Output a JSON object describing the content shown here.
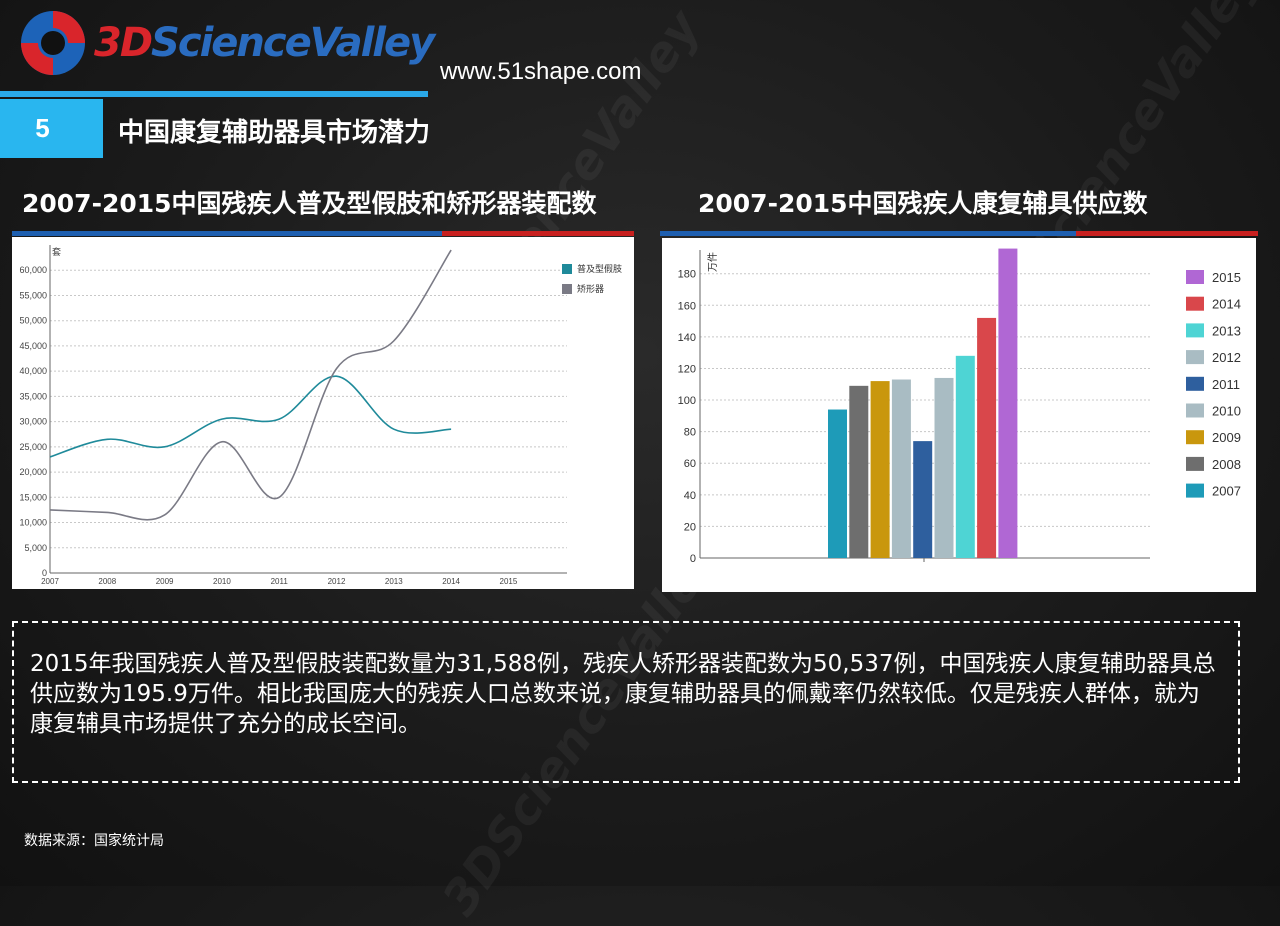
{
  "brand": {
    "logo_text_3d": "3D",
    "logo_text_rest": "ScienceValley",
    "website": "www.51shape.com"
  },
  "section": {
    "number": "5",
    "title": "中国康复辅助器具市场潜力"
  },
  "left_chart": {
    "title": "2007-2015中国残疾人普及型假肢和矫形器装配数"
  },
  "right_chart": {
    "title": "2007-2015中国残疾人康复辅具供应数"
  },
  "summary": "2015年我国残疾人普及型假肢装配数量为31,588例，残疾人矫形器装配数为50,537例，中国残疾人康复辅助器具总供应数为195.9万件。相比我国庞大的残疾人口总数来说，康复辅助器具的佩戴率仍然较低。仅是残疾人群体，就为康复辅具市场提供了充分的成长空间。",
  "source": "数据来源：国家统计局",
  "colors": {
    "accent_blue": "#29b6ef",
    "bar_blue": "#1e5fb0",
    "bar_red": "#c8201f"
  },
  "chart_data": [
    {
      "type": "line",
      "ylabel": "套",
      "x": [
        "2007",
        "2008",
        "2009",
        "2010",
        "2011",
        "2012",
        "2013",
        "2014",
        "2015"
      ],
      "ylim": [
        0,
        65000
      ],
      "yticks": [
        "0",
        "5,000",
        "10,000",
        "15,000",
        "20,000",
        "25,000",
        "30,000",
        "35,000",
        "40,000",
        "45,000",
        "50,000",
        "55,000",
        "60,000"
      ],
      "grid": true,
      "legend_position": "top-right",
      "series": [
        {
          "name": "普及型假肢",
          "color": "#1f8a9a",
          "x": [
            "2007",
            "2008",
            "2009",
            "2010",
            "2011",
            "2012",
            "2013",
            "2014"
          ],
          "values": [
            23000,
            26500,
            25000,
            30500,
            30500,
            39000,
            28500,
            28500
          ]
        },
        {
          "name": "矫形器",
          "color": "#7a7a85",
          "x": [
            "2007",
            "2008",
            "2009",
            "2010",
            "2011",
            "2012",
            "2013",
            "2014"
          ],
          "values": [
            12500,
            12000,
            11500,
            26000,
            15000,
            40500,
            46000,
            64000
          ]
        }
      ]
    },
    {
      "type": "bar",
      "ylabel": "万件",
      "ylim": [
        0,
        195
      ],
      "yticks": [
        "0",
        "20",
        "40",
        "60",
        "80",
        "100",
        "120",
        "140",
        "160",
        "180"
      ],
      "grid": true,
      "legend_position": "right",
      "categories": [
        "2007",
        "2008",
        "2009",
        "2010",
        "2011",
        "2012",
        "2013",
        "2014",
        "2015"
      ],
      "values": [
        94,
        109,
        112,
        113,
        74,
        114,
        128,
        152,
        195.9
      ],
      "colors": [
        "#1e9bb8",
        "#6e6e6e",
        "#c9970d",
        "#a9bcc3",
        "#2e5f9e",
        "#a9bcc3",
        "#4ed4d4",
        "#d9474b",
        "#b067d4"
      ]
    }
  ]
}
